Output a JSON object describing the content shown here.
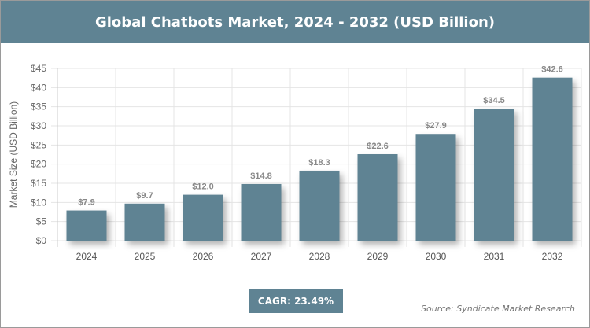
{
  "chart_data": {
    "type": "bar",
    "title": "Global Chatbots Market, 2024 - 2032 (USD Billion)",
    "categories": [
      "2024",
      "2025",
      "2026",
      "2027",
      "2028",
      "2029",
      "2030",
      "2031",
      "2032"
    ],
    "values": [
      7.9,
      9.7,
      12.0,
      14.8,
      18.3,
      22.6,
      27.9,
      34.5,
      42.6
    ],
    "data_labels": [
      "$7.9",
      "$9.7",
      "$12.0",
      "$14.8",
      "$18.3",
      "$22.6",
      "$27.9",
      "$34.5",
      "$42.6"
    ],
    "xlabel": "",
    "ylabel": "Market Size (USD Billion)",
    "ylim": [
      0,
      45
    ],
    "yticks": [
      0,
      5,
      10,
      15,
      20,
      25,
      30,
      35,
      40,
      45
    ],
    "ytick_labels": [
      "$0",
      "$5",
      "$10",
      "$15",
      "$20",
      "$25",
      "$30",
      "$35",
      "$40",
      "$45"
    ],
    "grid": true,
    "bar_color": "#5f8393"
  },
  "cagr": "CAGR: 23.49%",
  "source": "Source: Syndicate Market Research"
}
